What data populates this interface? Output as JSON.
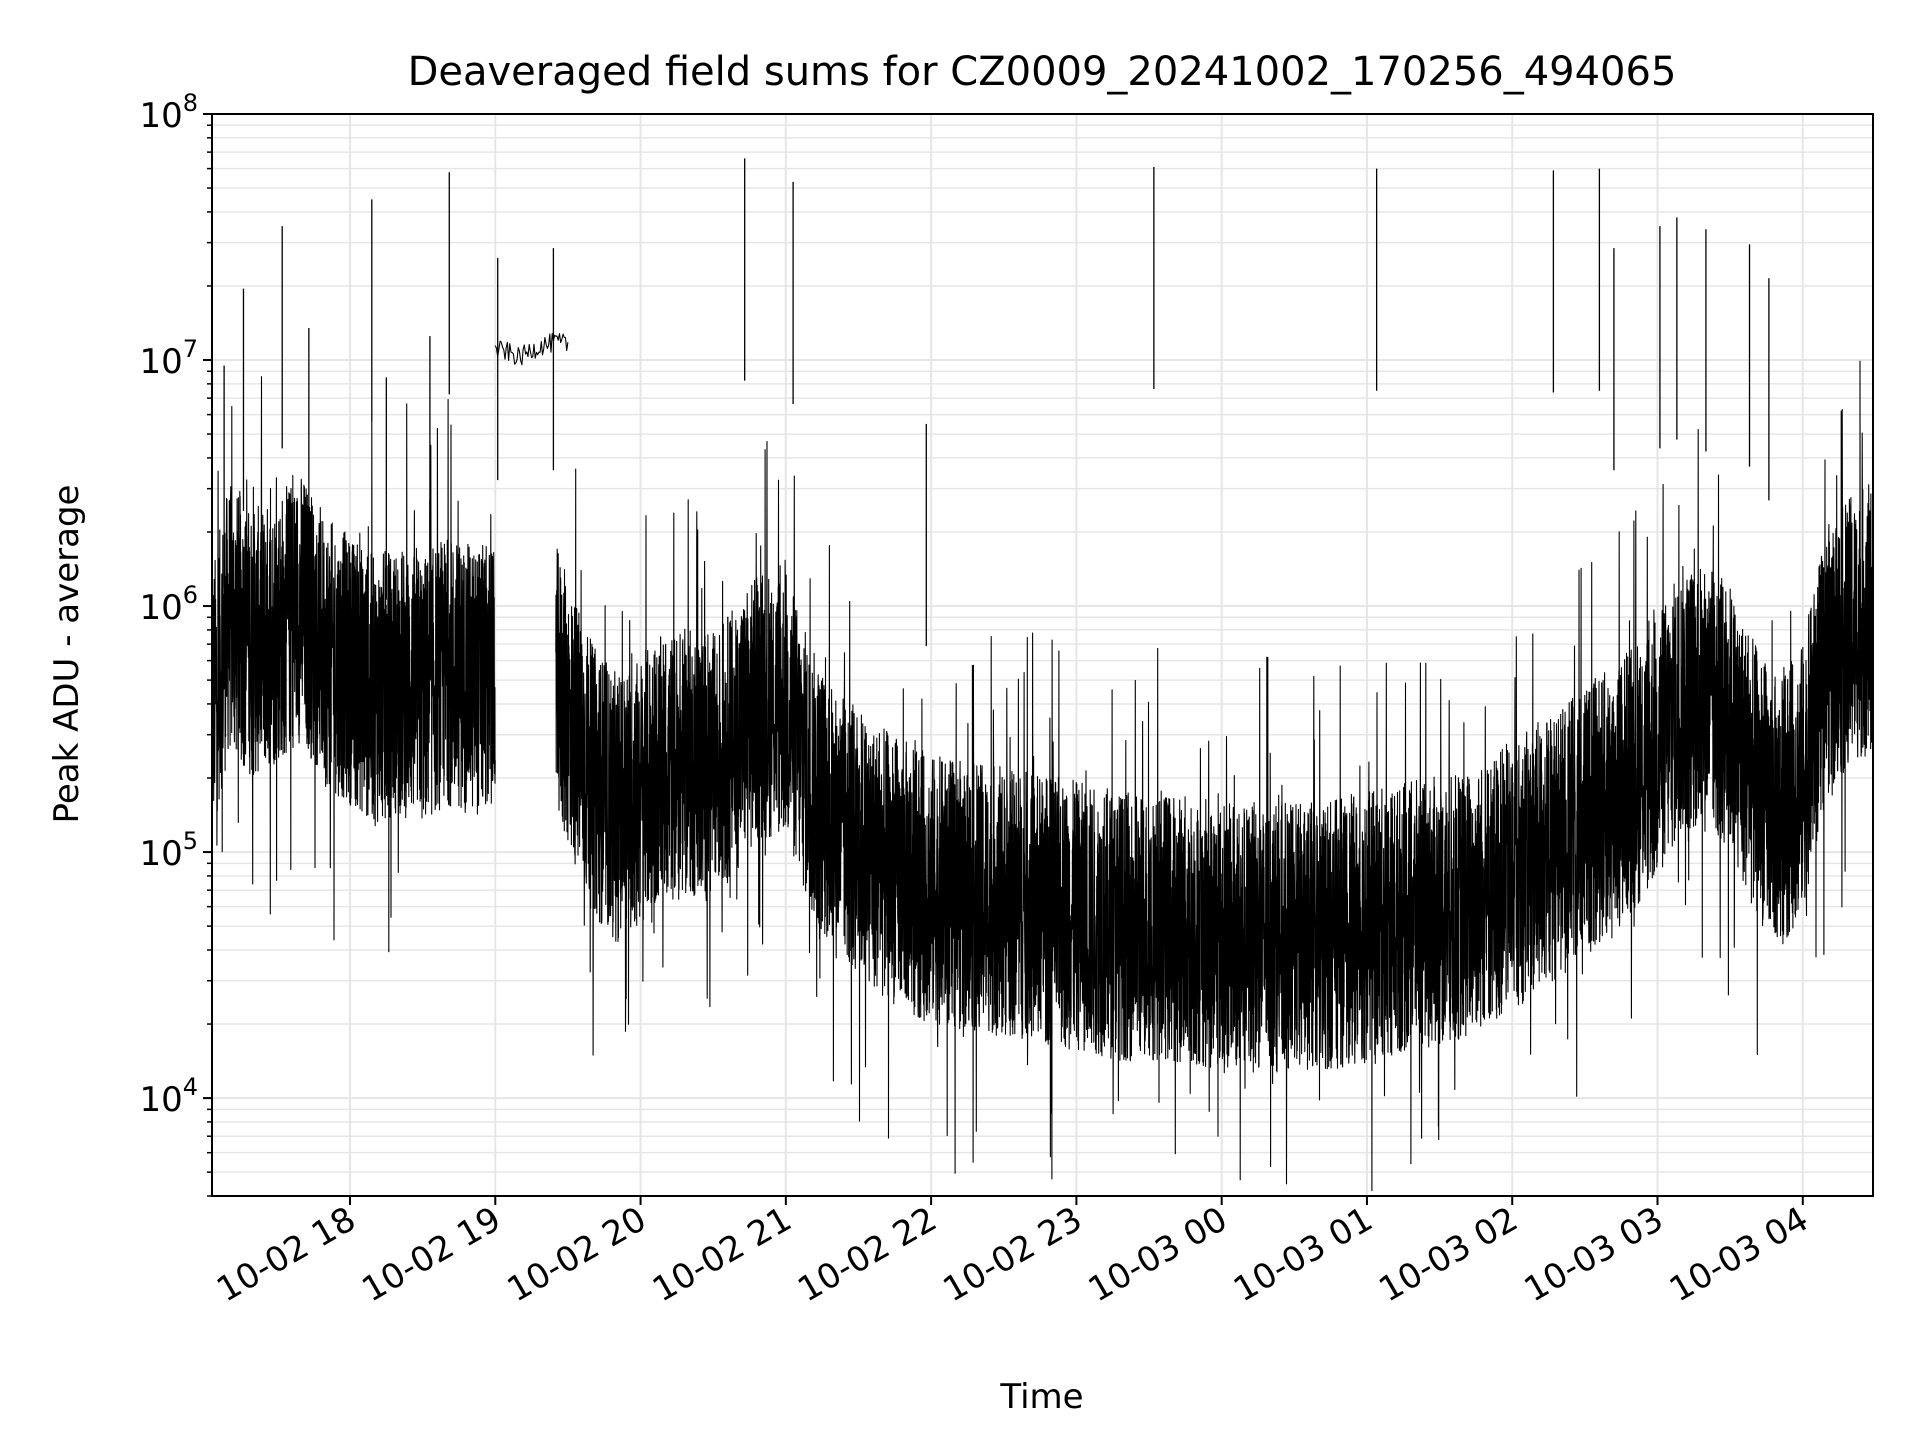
{
  "chart_data": {
    "type": "line",
    "title": "Deaveraged field sums for CZ0009_20241002_170256_494065",
    "xlabel": "Time",
    "ylabel": "Peak ADU - average",
    "yscale": "log",
    "ylim": [
      4000,
      100000000
    ],
    "xlim": [
      "10-02 17:03",
      "10-03 04:29"
    ],
    "grid": true,
    "line_color": "#000000",
    "grid_color": "#e6e6e6",
    "x_ticks": [
      {
        "label": "10-02 18",
        "t": "10-02 18:00"
      },
      {
        "label": "10-02 19",
        "t": "10-02 19:00"
      },
      {
        "label": "10-02 20",
        "t": "10-02 20:00"
      },
      {
        "label": "10-02 21",
        "t": "10-02 21:00"
      },
      {
        "label": "10-02 22",
        "t": "10-02 22:00"
      },
      {
        "label": "10-02 23",
        "t": "10-02 23:00"
      },
      {
        "label": "10-03 00",
        "t": "10-03 00:00"
      },
      {
        "label": "10-03 01",
        "t": "10-03 01:00"
      },
      {
        "label": "10-03 02",
        "t": "10-03 02:00"
      },
      {
        "label": "10-03 03",
        "t": "10-03 03:00"
      },
      {
        "label": "10-03 04",
        "t": "10-03 04:00"
      }
    ],
    "y_ticks": [
      {
        "base": "10",
        "exp": "4",
        "value": 10000
      },
      {
        "base": "10",
        "exp": "5",
        "value": 100000
      },
      {
        "base": "10",
        "exp": "6",
        "value": 1000000
      },
      {
        "base": "10",
        "exp": "7",
        "value": 10000000
      },
      {
        "base": "10",
        "exp": "8",
        "value": 100000000
      }
    ],
    "series": [
      {
        "style": "noisy",
        "points": [
          [
            "10-02 17:03",
            400000
          ],
          [
            "10-02 17:10",
            900000
          ],
          [
            "10-02 17:20",
            700000
          ],
          [
            "10-02 17:30",
            800000
          ],
          [
            "10-02 17:40",
            1000000
          ],
          [
            "10-02 17:50",
            650000
          ],
          [
            "10-02 18:00",
            550000
          ],
          [
            "10-02 18:10",
            450000
          ],
          [
            "10-02 18:20",
            500000
          ],
          [
            "10-02 18:30",
            450000
          ],
          [
            "10-02 18:40",
            550000
          ],
          [
            "10-02 18:50",
            500000
          ],
          [
            "10-02 19:00",
            500000
          ]
        ]
      },
      {
        "style": "smooth",
        "points": [
          [
            "10-02 19:00",
            11000000
          ],
          [
            "10-02 19:05",
            10800000
          ],
          [
            "10-02 19:10",
            10200000
          ],
          [
            "10-02 19:15",
            11000000
          ],
          [
            "10-02 19:20",
            11500000
          ],
          [
            "10-02 19:25",
            11800000
          ],
          [
            "10-02 19:30",
            11600000
          ]
        ]
      },
      {
        "style": "noisy",
        "points": [
          [
            "10-02 19:25",
            500000
          ],
          [
            "10-02 19:40",
            200000
          ],
          [
            "10-02 19:50",
            150000
          ],
          [
            "10-02 20:00",
            180000
          ],
          [
            "10-02 20:10",
            220000
          ],
          [
            "10-02 20:20",
            230000
          ],
          [
            "10-02 20:30",
            220000
          ],
          [
            "10-02 20:40",
            300000
          ],
          [
            "10-02 20:50",
            400000
          ],
          [
            "10-02 21:00",
            400000
          ],
          [
            "10-02 21:10",
            200000
          ],
          [
            "10-02 21:20",
            130000
          ],
          [
            "10-02 21:30",
            110000
          ],
          [
            "10-02 21:40",
            90000
          ],
          [
            "10-02 21:50",
            80000
          ],
          [
            "10-02 22:00",
            70000
          ],
          [
            "10-02 22:20",
            65000
          ],
          [
            "10-02 22:40",
            60000
          ],
          [
            "10-02 23:00",
            55000
          ],
          [
            "10-02 23:20",
            50000
          ],
          [
            "10-02 23:40",
            50000
          ],
          [
            "10-03 00:00",
            45000
          ],
          [
            "10-03 00:20",
            45000
          ],
          [
            "10-03 00:40",
            45000
          ],
          [
            "10-03 01:00",
            50000
          ],
          [
            "10-03 01:20",
            55000
          ],
          [
            "10-03 01:40",
            60000
          ],
          [
            "10-03 02:00",
            80000
          ],
          [
            "10-03 02:20",
            110000
          ],
          [
            "10-03 02:40",
            160000
          ],
          [
            "10-03 03:00",
            260000
          ],
          [
            "10-03 03:10",
            420000
          ],
          [
            "10-03 03:20",
            420000
          ],
          [
            "10-03 03:30",
            350000
          ],
          [
            "10-03 03:40",
            200000
          ],
          [
            "10-03 03:50",
            140000
          ],
          [
            "10-03 04:00",
            200000
          ],
          [
            "10-03 04:10",
            600000
          ],
          [
            "10-03 04:20",
            800000
          ],
          [
            "10-03 04:29",
            900000
          ]
        ]
      },
      {
        "style": "spikes",
        "points": [
          [
            "10-02 17:08",
            9500000
          ],
          [
            "10-02 17:16",
            19500000
          ],
          [
            "10-02 17:32",
            35000000
          ],
          [
            "10-02 17:43",
            13500000
          ],
          [
            "10-02 18:09",
            45000000
          ],
          [
            "10-02 18:15",
            8500000
          ],
          [
            "10-02 18:33",
            12500000
          ],
          [
            "10-02 18:41",
            58000000
          ],
          [
            "10-02 19:01",
            26000000
          ],
          [
            "10-02 19:24",
            28500000
          ],
          [
            "10-02 20:43",
            66000000
          ],
          [
            "10-02 21:03",
            53000000
          ],
          [
            "10-02 21:58",
            5500000
          ],
          [
            "10-02 23:32",
            61000000
          ],
          [
            "10-03 01:04",
            60000000
          ],
          [
            "10-03 02:17",
            59000000
          ],
          [
            "10-03 02:36",
            60000000
          ],
          [
            "10-03 02:42",
            28500000
          ],
          [
            "10-03 03:01",
            35000000
          ],
          [
            "10-03 03:08",
            38000000
          ],
          [
            "10-03 03:20",
            34000000
          ],
          [
            "10-03 03:38",
            29500000
          ],
          [
            "10-03 03:46",
            21500000
          ]
        ]
      }
    ]
  }
}
